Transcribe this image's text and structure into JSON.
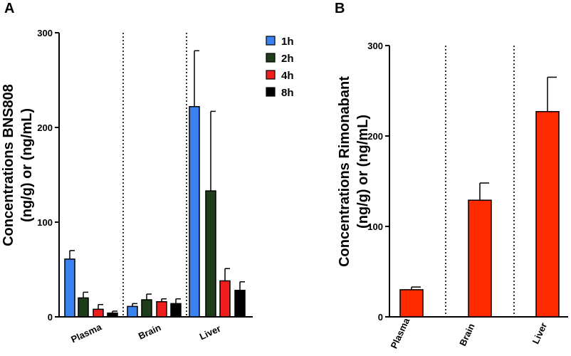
{
  "panels": {
    "a_letter": "A",
    "b_letter": "B"
  },
  "chart_data": [
    {
      "type": "bar",
      "panel": "A",
      "ylabel_line1": "Concentrations BNS808",
      "ylabel_line2": "(ng/g) or (ng/mL)",
      "xlabel": "",
      "ylim": [
        0,
        300
      ],
      "yticks": [
        "0",
        "100",
        "200",
        "300"
      ],
      "categories": [
        "Plasma",
        "Brain",
        "Liver"
      ],
      "series": [
        {
          "name": "1h",
          "color": "#3b82f0",
          "values": [
            61,
            11,
            222
          ],
          "errors": [
            9,
            3,
            59
          ]
        },
        {
          "name": "2h",
          "color": "#1f3d1a",
          "values": [
            20,
            18,
            133
          ],
          "errors": [
            6,
            6,
            84
          ]
        },
        {
          "name": "4h",
          "color": "#f01d1d",
          "values": [
            8,
            16,
            38
          ],
          "errors": [
            5,
            3,
            13
          ]
        },
        {
          "name": "8h",
          "color": "#000000",
          "values": [
            4,
            14,
            28
          ],
          "errors": [
            2,
            5,
            9
          ]
        }
      ],
      "separators": "dotted",
      "legend_position": "top-right"
    },
    {
      "type": "bar",
      "panel": "B",
      "ylabel_line1": "Concentrations Rimonabant",
      "ylabel_line2": "(ng/g) or (ng/mL)",
      "xlabel": "",
      "ylim": [
        0,
        300
      ],
      "yticks": [
        "0",
        "100",
        "200",
        "300"
      ],
      "categories": [
        "Plasma",
        "Brain",
        "Liver"
      ],
      "series": [
        {
          "color": "#ff2a00",
          "values": [
            30,
            129,
            227
          ],
          "errors": [
            3,
            19,
            38
          ]
        }
      ],
      "separators": "dotted"
    }
  ]
}
